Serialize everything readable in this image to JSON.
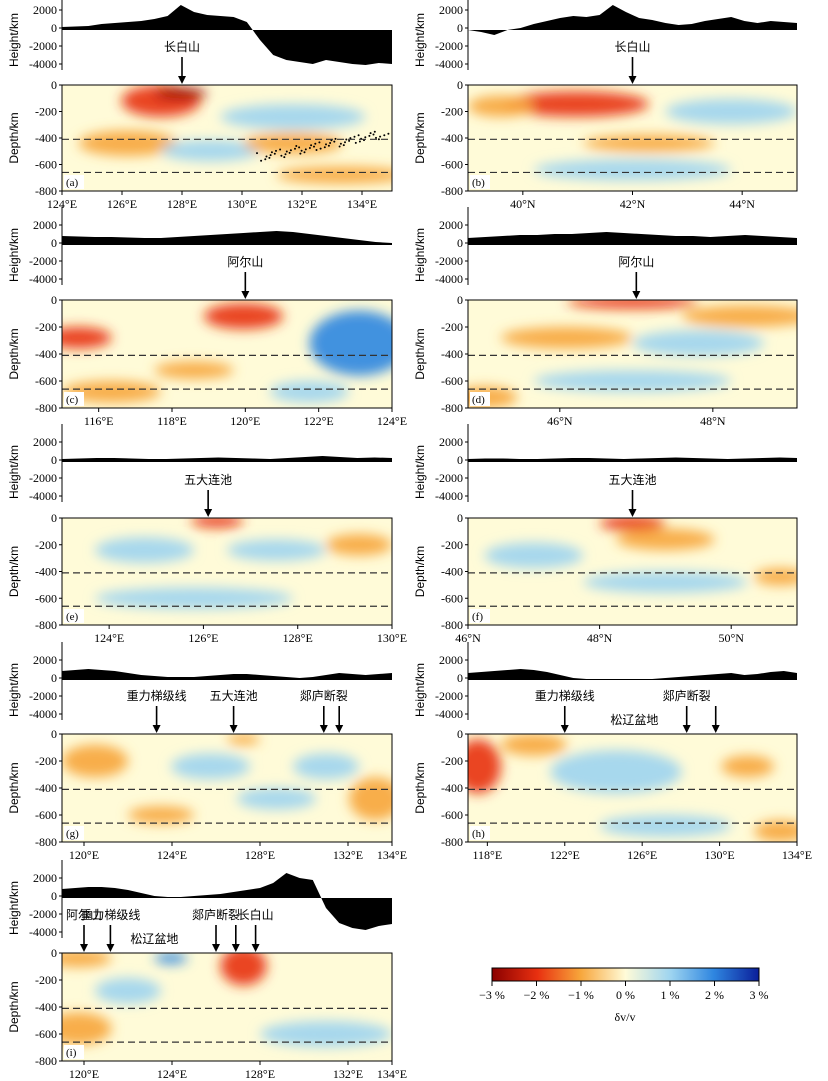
{
  "chart_data": {
    "type": "heatmap",
    "colorbar": {
      "ticks": [
        "−3 %",
        "−2 %",
        "−1 %",
        "0 %",
        "1 %",
        "2 %",
        "3 %"
      ],
      "label": "δv/v",
      "colors": [
        "#8b0000",
        "#e83010",
        "#f7a53a",
        "#fffbd8",
        "#9dd4f0",
        "#2f86e0",
        "#0a1e9a"
      ]
    },
    "panels": [
      {
        "id": "a",
        "label": "(a)",
        "height_label": "Height/km",
        "depth_label": "Depth/km",
        "height_ticks": [
          "2000",
          "0",
          "-2000",
          "-4000"
        ],
        "depth_ticks": [
          "0",
          "-200",
          "-400",
          "-600",
          "-800"
        ],
        "x_ticks": [
          "124°E",
          "126°E",
          "128°E",
          "130°E",
          "132°E",
          "134°E"
        ],
        "annotations": [
          {
            "text": "长白山",
            "x": 128
          }
        ],
        "topo_profile": [
          300,
          350,
          400,
          600,
          700,
          800,
          900,
          1100,
          1400,
          2500,
          1800,
          1500,
          1400,
          1300,
          800,
          -1000,
          -2500,
          -3000,
          -3200,
          -3400,
          -3000,
          -3200,
          -3400,
          -3500,
          -3300,
          -3400
        ],
        "anomalies": [
          [
            -1.6,
            0.3,
            0.15,
            0.12,
            0.15
          ],
          [
            -2.6,
            0.36,
            0.08,
            0.08,
            0.05
          ],
          [
            1.3,
            0.7,
            0.3,
            0.22,
            0.12
          ],
          [
            -1.0,
            0.2,
            0.55,
            0.15,
            0.12
          ],
          [
            1.0,
            0.45,
            0.62,
            0.15,
            0.1
          ],
          [
            -1.0,
            0.7,
            0.55,
            0.15,
            0.1
          ],
          [
            -1.2,
            0.85,
            0.85,
            0.2,
            0.08
          ]
        ],
        "slab_points": true
      },
      {
        "id": "b",
        "label": "(b)",
        "height_label": "Height/km",
        "depth_label": "Depth/km",
        "height_ticks": [
          "2000",
          "0",
          "-2000",
          "-4000"
        ],
        "depth_ticks": [
          "0",
          "-200",
          "-400",
          "-600",
          "-800"
        ],
        "x_ticks": [
          "40°N",
          "42°N",
          "44°N"
        ],
        "annotations": [
          {
            "text": "长白山",
            "x": 42
          }
        ],
        "topo_profile": [
          0,
          -200,
          -500,
          0,
          200,
          600,
          900,
          1200,
          1400,
          1300,
          1500,
          2500,
          1800,
          1200,
          1000,
          700,
          500,
          600,
          900,
          1100,
          1300,
          900,
          700,
          900,
          800,
          700
        ],
        "anomalies": [
          [
            -2.2,
            0.33,
            0.18,
            0.22,
            0.12
          ],
          [
            -1.2,
            0.1,
            0.2,
            0.1,
            0.1
          ],
          [
            1.1,
            0.8,
            0.25,
            0.2,
            0.12
          ],
          [
            -0.8,
            0.55,
            0.55,
            0.2,
            0.08
          ],
          [
            1.0,
            0.5,
            0.8,
            0.3,
            0.1
          ]
        ],
        "slab_points": false
      },
      {
        "id": "c",
        "label": "(c)",
        "height_label": "Height/km",
        "depth_label": "Depth/km",
        "height_ticks": [
          "2000",
          "0",
          "-2000",
          "-4000"
        ],
        "depth_ticks": [
          "0",
          "-200",
          "-400",
          "-600",
          "-800"
        ],
        "x_ticks": [
          "116°E",
          "118°E",
          "120°E",
          "122°E",
          "124°E"
        ],
        "annotations": [
          {
            "text": "阿尔山",
            "x": 120
          }
        ],
        "topo_profile": [
          900,
          850,
          800,
          800,
          750,
          700,
          700,
          800,
          900,
          1000,
          1100,
          1200,
          1300,
          1400,
          1300,
          1100,
          900,
          700,
          500,
          300,
          200
        ],
        "anomalies": [
          [
            -2.2,
            0.05,
            0.35,
            0.1,
            0.1
          ],
          [
            -1.8,
            0.55,
            0.15,
            0.12,
            0.12
          ],
          [
            -1.2,
            0.4,
            0.65,
            0.12,
            0.08
          ],
          [
            1.6,
            0.9,
            0.4,
            0.15,
            0.3
          ],
          [
            1.2,
            0.75,
            0.85,
            0.12,
            0.1
          ],
          [
            -0.8,
            0.15,
            0.85,
            0.15,
            0.1
          ]
        ],
        "slab_points": false
      },
      {
        "id": "d",
        "label": "(d)",
        "height_label": "Height/km",
        "depth_label": "Depth/km",
        "height_ticks": [
          "2000",
          "0",
          "-2000",
          "-4000"
        ],
        "depth_ticks": [
          "0",
          "-200",
          "-400",
          "-600",
          "-800"
        ],
        "x_ticks": [
          "46°N",
          "48°N"
        ],
        "annotations": [
          {
            "text": "阿尔山",
            "x": 47
          }
        ],
        "topo_profile": [
          700,
          800,
          900,
          1000,
          1000,
          1100,
          1100,
          1200,
          1300,
          1200,
          1100,
          1000,
          900,
          900,
          800,
          900,
          1000,
          900,
          800,
          700
        ],
        "anomalies": [
          [
            -2.0,
            0.5,
            0.02,
            0.2,
            0.06
          ],
          [
            -1.2,
            0.85,
            0.15,
            0.2,
            0.1
          ],
          [
            1.0,
            0.7,
            0.4,
            0.2,
            0.12
          ],
          [
            -0.7,
            0.3,
            0.35,
            0.2,
            0.1
          ],
          [
            0.9,
            0.5,
            0.75,
            0.3,
            0.1
          ],
          [
            -0.8,
            0.05,
            0.9,
            0.1,
            0.1
          ]
        ],
        "slab_points": false
      },
      {
        "id": "e",
        "label": "(e)",
        "height_label": "Height/km",
        "depth_label": "Depth/km",
        "height_ticks": [
          "2000",
          "0",
          "-2000",
          "-4000"
        ],
        "depth_ticks": [
          "0",
          "-200",
          "-400",
          "-600",
          "-800"
        ],
        "x_ticks": [
          "124°E",
          "126°E",
          "128°E",
          "130°E"
        ],
        "annotations": [
          {
            "text": "五大连池",
            "x": 126.1
          }
        ],
        "topo_profile": [
          300,
          350,
          400,
          400,
          350,
          300,
          300,
          350,
          400,
          450,
          400,
          350,
          300,
          400,
          500,
          600,
          500,
          400,
          450,
          400
        ],
        "anomalies": [
          [
            -1.6,
            0.47,
            0.03,
            0.08,
            0.06
          ],
          [
            1.4,
            0.65,
            0.3,
            0.15,
            0.1
          ],
          [
            1.0,
            0.25,
            0.3,
            0.15,
            0.12
          ],
          [
            1.2,
            0.4,
            0.75,
            0.3,
            0.1
          ],
          [
            -0.8,
            0.9,
            0.25,
            0.1,
            0.1
          ]
        ],
        "slab_points": false
      },
      {
        "id": "f",
        "label": "(f)",
        "height_label": "Height/km",
        "depth_label": "Depth/km",
        "height_ticks": [
          "2000",
          "0",
          "-2000",
          "-4000"
        ],
        "depth_ticks": [
          "0",
          "-200",
          "-400",
          "-600",
          "-800"
        ],
        "x_ticks": [
          "46°N",
          "48°N",
          "50°N"
        ],
        "annotations": [
          {
            "text": "五大连池",
            "x": 48.5
          }
        ],
        "topo_profile": [
          300,
          350,
          350,
          300,
          300,
          350,
          400,
          400,
          350,
          300,
          350,
          400,
          450,
          400,
          350,
          300,
          350,
          400,
          450,
          400
        ],
        "anomalies": [
          [
            -1.8,
            0.5,
            0.05,
            0.1,
            0.07
          ],
          [
            -0.9,
            0.6,
            0.2,
            0.15,
            0.1
          ],
          [
            1.1,
            0.2,
            0.35,
            0.15,
            0.12
          ],
          [
            1.0,
            0.6,
            0.6,
            0.25,
            0.1
          ],
          [
            -0.9,
            0.95,
            0.55,
            0.08,
            0.08
          ]
        ],
        "slab_points": false
      },
      {
        "id": "g",
        "label": "(g)",
        "height_label": "Height/km",
        "depth_label": "Depth/km",
        "height_ticks": [
          "2000",
          "0",
          "-2000",
          "-4000"
        ],
        "depth_ticks": [
          "0",
          "-200",
          "-400",
          "-600",
          "-800"
        ],
        "x_ticks": [
          "120°E",
          "124°E",
          "128°E",
          "132°E",
          "134°E"
        ],
        "annotations": [
          {
            "text": "重力梯级线",
            "x": 123.3
          },
          {
            "text": "五大连池",
            "x": 126.8
          },
          {
            "text": "郯庐断裂",
            "x": 130.9
          },
          {
            "text": "",
            "x": 131.6
          }
        ],
        "topo_profile": [
          900,
          1000,
          1100,
          1000,
          900,
          700,
          500,
          400,
          300,
          300,
          300,
          400,
          500,
          600,
          600,
          500,
          400,
          300,
          200,
          300,
          500,
          700,
          600,
          500,
          600,
          700
        ],
        "anomalies": [
          [
            -1.0,
            0.1,
            0.25,
            0.1,
            0.15
          ],
          [
            1.1,
            0.45,
            0.3,
            0.12,
            0.12
          ],
          [
            -1.1,
            0.55,
            0.05,
            0.05,
            0.05
          ],
          [
            1.0,
            0.65,
            0.6,
            0.12,
            0.1
          ],
          [
            -1.2,
            0.95,
            0.6,
            0.08,
            0.2
          ],
          [
            -0.8,
            0.3,
            0.75,
            0.1,
            0.08
          ],
          [
            1.0,
            0.8,
            0.3,
            0.1,
            0.12
          ]
        ],
        "slab_points": false
      },
      {
        "id": "h",
        "label": "(h)",
        "height_label": "Height/km",
        "depth_label": "Depth/km",
        "height_ticks": [
          "2000",
          "0",
          "-2000",
          "-4000"
        ],
        "depth_ticks": [
          "0",
          "-200",
          "-400",
          "-600",
          "-800"
        ],
        "x_ticks": [
          "118°E",
          "122°E",
          "126°E",
          "130°E",
          "134°E"
        ],
        "annotations": [
          {
            "text": "重力梯级线",
            "x": 122
          },
          {
            "text": "郯庐断裂",
            "x": 128.3
          },
          {
            "text": "",
            "x": 129.8
          }
        ],
        "labels": [
          {
            "text": "松辽盆地",
            "x": 125.6
          }
        ],
        "topo_profile": [
          700,
          800,
          900,
          1000,
          1100,
          1000,
          800,
          500,
          200,
          100,
          100,
          100,
          100,
          100,
          100,
          200,
          300,
          400,
          500,
          600,
          700,
          500,
          600,
          800,
          900,
          700
        ],
        "anomalies": [
          [
            -2.2,
            0.03,
            0.3,
            0.07,
            0.25
          ],
          [
            -1.5,
            0.2,
            0.1,
            0.1,
            0.1
          ],
          [
            1.3,
            0.45,
            0.35,
            0.2,
            0.2
          ],
          [
            1.3,
            0.6,
            0.85,
            0.2,
            0.1
          ],
          [
            -1.0,
            0.95,
            0.9,
            0.08,
            0.1
          ],
          [
            -0.8,
            0.85,
            0.3,
            0.08,
            0.1
          ]
        ],
        "slab_points": false
      },
      {
        "id": "i",
        "label": "(i)",
        "height_label": "Height/km",
        "depth_label": "Depth/km",
        "height_ticks": [
          "2000",
          "0",
          "-2000",
          "-4000"
        ],
        "depth_ticks": [
          "0",
          "-200",
          "-400",
          "-600",
          "-800"
        ],
        "x_ticks": [
          "120°E",
          "124°E",
          "128°E",
          "132°E",
          "134°E"
        ],
        "annotations": [
          {
            "text": "阿尔山",
            "x": 120
          },
          {
            "text": "重力梯级线",
            "x": 121.2
          },
          {
            "text": "郯庐断裂",
            "x": 126
          },
          {
            "text": "",
            "x": 126.9
          },
          {
            "text": "长白山",
            "x": 127.8
          }
        ],
        "labels": [
          {
            "text": "松辽盆地",
            "x": 123.2
          }
        ],
        "topo_profile": [
          900,
          1000,
          1100,
          1100,
          1000,
          800,
          500,
          200,
          100,
          100,
          200,
          300,
          400,
          600,
          800,
          1000,
          1500,
          2500,
          2000,
          1800,
          -1000,
          -2500,
          -3000,
          -3200,
          -2800,
          -2600
        ],
        "anomalies": [
          [
            -2.4,
            0.55,
            0.12,
            0.07,
            0.18
          ],
          [
            1.6,
            0.33,
            0.05,
            0.05,
            0.05
          ],
          [
            -1.2,
            0.05,
            0.05,
            0.1,
            0.08
          ],
          [
            1.0,
            0.2,
            0.35,
            0.1,
            0.12
          ],
          [
            1.0,
            0.8,
            0.75,
            0.2,
            0.12
          ],
          [
            -0.7,
            0.05,
            0.7,
            0.1,
            0.15
          ]
        ],
        "slab_points": false
      }
    ]
  }
}
